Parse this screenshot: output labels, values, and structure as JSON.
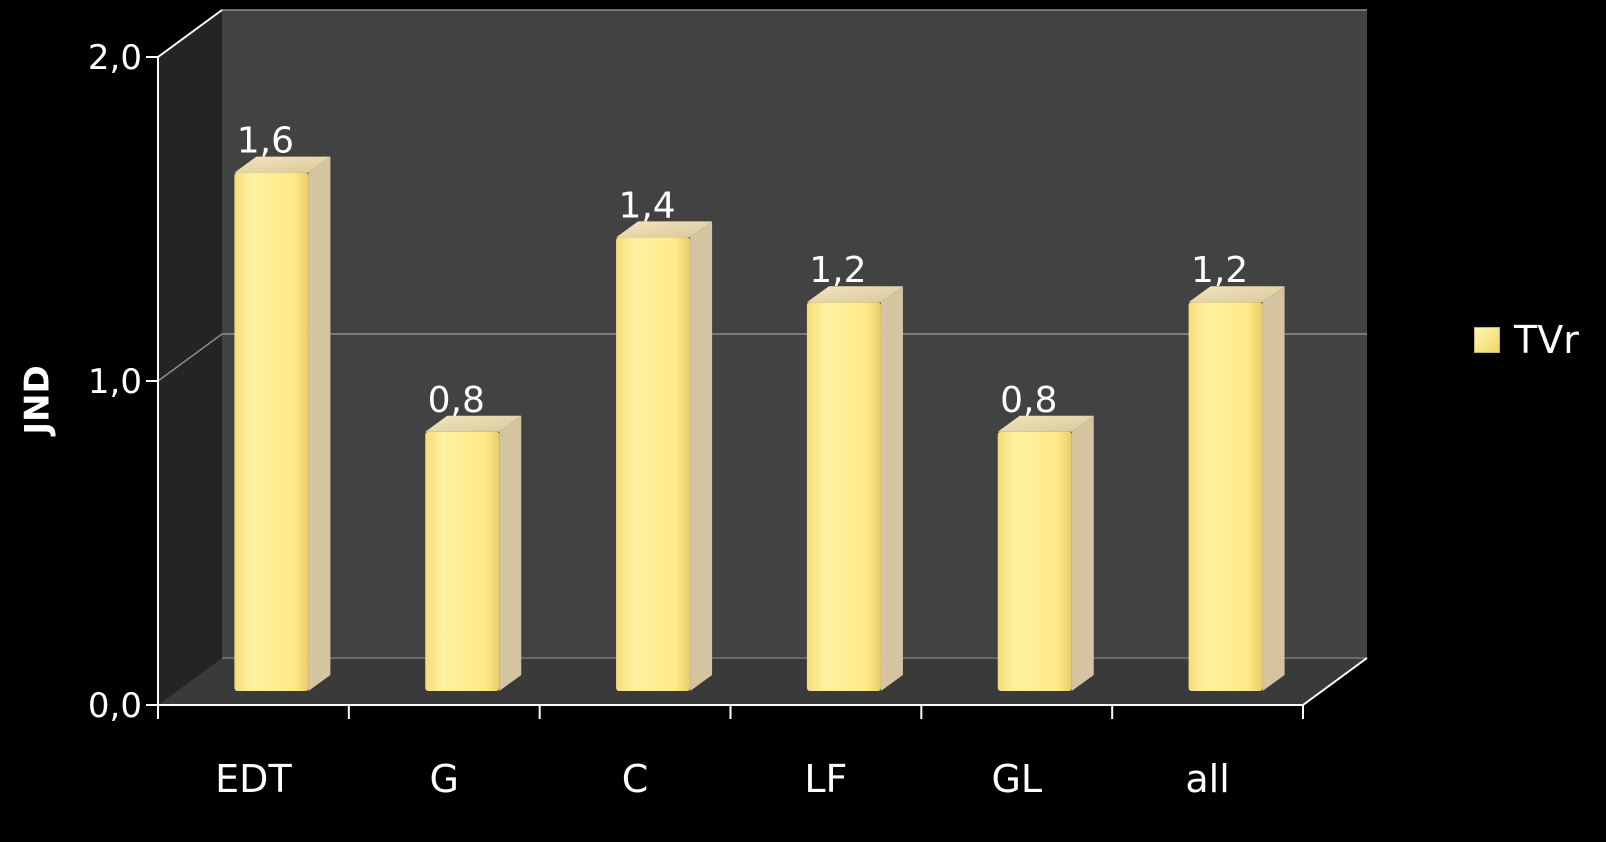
{
  "chart_data": {
    "type": "bar",
    "categories": [
      "EDT",
      "G",
      "C",
      "LF",
      "GL",
      "all"
    ],
    "series": [
      {
        "name": "TVr",
        "values": [
          1.6,
          0.8,
          1.4,
          1.2,
          0.8,
          1.2
        ],
        "value_labels": [
          "1,6",
          "0,8",
          "1,4",
          "1,2",
          "0,8",
          "1,2"
        ]
      }
    ],
    "ylabel": "JND",
    "ylim": [
      0,
      2
    ],
    "yticks": [
      0,
      1,
      2
    ],
    "ytick_labels": [
      "0,0",
      "1,0",
      "2,0"
    ],
    "grid": true,
    "legend": "right",
    "colors": {
      "bar_face": "#FFEB8A",
      "bar_side": "#D4C4A0",
      "back_wall": "#424242",
      "side_wall": "#242424",
      "floor": "#3A3A3A",
      "text": "#FFFFFF"
    }
  }
}
